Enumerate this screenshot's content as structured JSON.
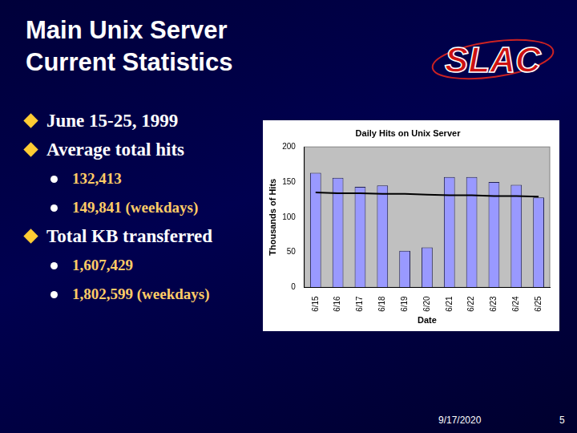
{
  "slide": {
    "title": [
      "Main Unix Server",
      "Current Statistics"
    ],
    "logo": "SLAC",
    "bullets": [
      {
        "text": "June 15-25, 1999",
        "sub": []
      },
      {
        "text": "Average total hits",
        "sub": [
          "132,413",
          "149,841 (weekdays)"
        ]
      },
      {
        "text": "Total KB transferred",
        "sub": [
          "1,607,429",
          "1,802,599 (weekdays)"
        ]
      }
    ],
    "footer": {
      "date": "9/17/2020",
      "page": "5"
    }
  },
  "chart_data": {
    "type": "bar",
    "title": "Daily Hits on Unix Server",
    "x_label": "Date",
    "y_label": "Thousands of Hits",
    "categories": [
      "6/15",
      "6/16",
      "6/17",
      "6/18",
      "6/19",
      "6/20",
      "6/21",
      "6/22",
      "6/23",
      "6/24",
      "6/25"
    ],
    "series": [
      {
        "type": "bar",
        "color": "#9999ff",
        "values": [
          163,
          156,
          143,
          145,
          52,
          57,
          157,
          157,
          150,
          146,
          128
        ]
      },
      {
        "type": "line",
        "color": "#000000",
        "values": [
          135,
          134,
          134,
          133,
          133,
          132,
          131,
          131,
          130,
          130,
          129
        ]
      }
    ],
    "ylim": [
      0,
      200
    ],
    "yticks": [
      0,
      50,
      100,
      150,
      200
    ],
    "grid": false
  }
}
